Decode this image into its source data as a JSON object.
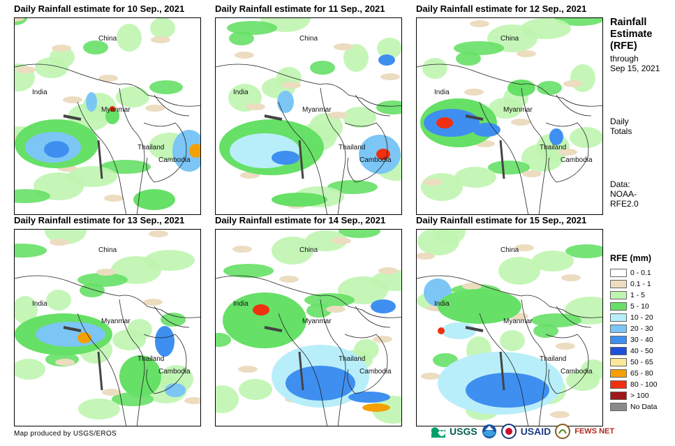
{
  "panels": [
    {
      "title": "Daily Rainfall estimate for 10 Sep., 2021"
    },
    {
      "title": "Daily Rainfall estimate for 11 Sep., 2021"
    },
    {
      "title": "Daily Rainfall estimate for 12 Sep., 2021"
    },
    {
      "title": "Daily Rainfall estimate for 13 Sep., 2021"
    },
    {
      "title": "Daily Rainfall estimate for 14 Sep., 2021"
    },
    {
      "title": "Daily Rainfall estimate for 15 Sep., 2021"
    }
  ],
  "map_labels": {
    "china": "China",
    "india": "India",
    "myanmar": "Myanmar",
    "thailand": "Thailand",
    "cambodia": "Cambodia"
  },
  "sidebar": {
    "title_line1": "Rainfall",
    "title_line2": "Estimate",
    "title_line3": "(RFE)",
    "through": "through",
    "date": "Sep 15, 2021",
    "daily": "Daily",
    "totals": "Totals",
    "data_label": "Data:",
    "data_src1": "NOAA-",
    "data_src2": "RFE2.0"
  },
  "legend": {
    "title": "RFE (mm)",
    "items": [
      {
        "label": "0 - 0.1",
        "color": "#ffffff"
      },
      {
        "label": "0.1 - 1",
        "color": "#ecdcc0"
      },
      {
        "label": "1 - 5",
        "color": "#bff5b0"
      },
      {
        "label": "5 - 10",
        "color": "#66e066"
      },
      {
        "label": "10 - 20",
        "color": "#b8eefa"
      },
      {
        "label": "20 - 30",
        "color": "#7cc6f5"
      },
      {
        "label": "30 - 40",
        "color": "#3f8ff0"
      },
      {
        "label": "40 - 50",
        "color": "#1f4fd8"
      },
      {
        "label": "50 - 65",
        "color": "#fbe79a"
      },
      {
        "label": "65 - 80",
        "color": "#f3a000"
      },
      {
        "label": "80 - 100",
        "color": "#f03010"
      },
      {
        "label": "> 100",
        "color": "#a01818"
      },
      {
        "label": "No Data",
        "color": "#8a8a8a"
      }
    ]
  },
  "footer": {
    "credit": "Map produced by USGS/EROS"
  },
  "logos": {
    "usgs": "USGS",
    "usaid": "USAID",
    "fewsnet": "FEWS NET"
  }
}
